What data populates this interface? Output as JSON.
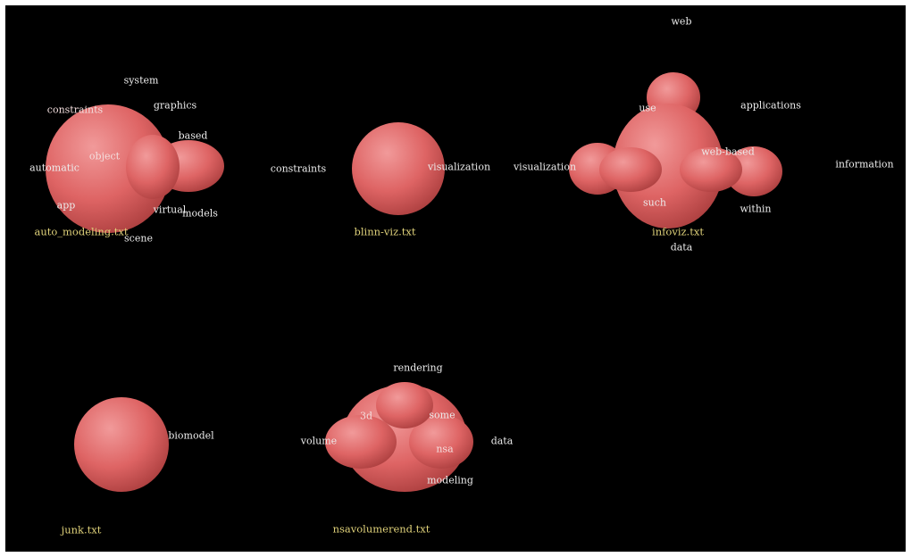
{
  "scene": {
    "background": "#000000",
    "blob_color": "#e06666",
    "file_label_color": "#e0d27a",
    "keyword_color": "#ececec",
    "clusters": [
      {
        "name": "auto-modeling",
        "file_label": "auto_modeling.txt",
        "keywords": [
          "system",
          "graphics",
          "constraints",
          "based",
          "object",
          "automatic",
          "models",
          "virtual",
          "app",
          "scene"
        ]
      },
      {
        "name": "blinn-viz",
        "file_label": "blinn-viz.txt",
        "keywords": [
          "constraints",
          "visualization"
        ]
      },
      {
        "name": "infoviz",
        "file_label": "infoviz.txt",
        "keywords": [
          "web",
          "use",
          "applications",
          "visualization",
          "web-based",
          "information",
          "such",
          "within",
          "data"
        ]
      },
      {
        "name": "junk",
        "file_label": "junk.txt",
        "keywords": [
          "biomodel"
        ]
      },
      {
        "name": "nsavolumerend",
        "file_label": "nsavolumerend.txt",
        "keywords": [
          "rendering",
          "volume",
          "some",
          "data",
          "nsa",
          "modeling",
          "3d"
        ]
      }
    ]
  }
}
